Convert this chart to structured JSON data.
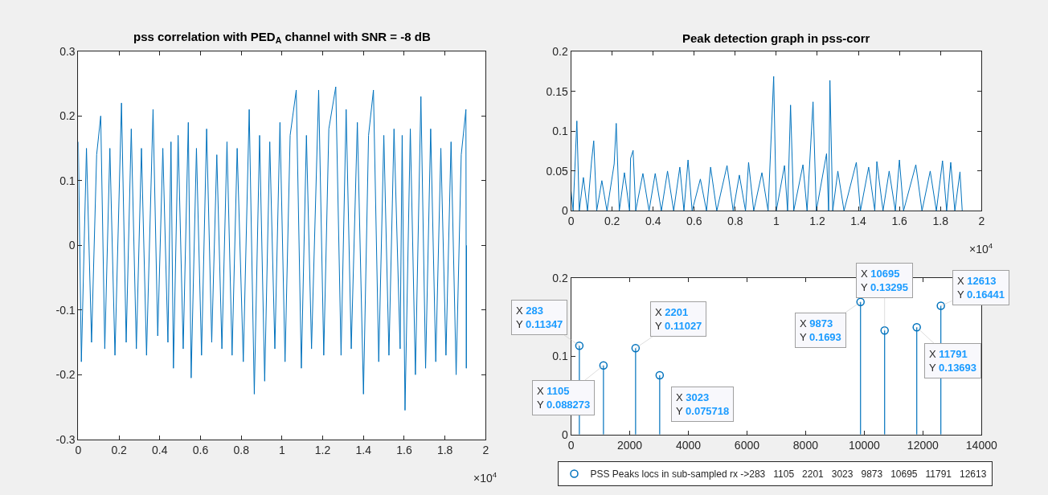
{
  "chart_data": [
    {
      "type": "line",
      "title": "pss correlation with PED$_{A}$ channel with SNR = -8 dB",
      "series": [
        {
          "color": "#0072bd",
          "x": [
            0,
            0.015,
            0.04,
            0.065,
            0.09,
            0.11,
            0.13,
            0.155,
            0.18,
            0.212,
            0.235,
            0.26,
            0.285,
            0.31,
            0.335,
            0.367,
            0.39,
            0.415,
            0.44,
            0.455,
            0.467,
            0.49,
            0.515,
            0.54,
            0.554,
            0.58,
            0.605,
            0.63,
            0.655,
            0.68,
            0.705,
            0.73,
            0.755,
            0.78,
            0.81,
            0.839,
            0.864,
            0.89,
            0.915,
            0.94,
            0.965,
            0.99,
            1.015,
            1.04,
            1.07,
            1.095,
            1.12,
            1.145,
            1.18,
            1.205,
            1.23,
            1.264,
            1.29,
            1.315,
            1.34,
            1.37,
            1.4,
            1.425,
            1.449,
            1.475,
            1.5,
            1.525,
            1.55,
            1.58,
            1.59,
            1.604,
            1.63,
            1.655,
            1.682,
            1.705,
            1.73,
            1.755,
            1.78,
            1.805,
            1.83,
            1.855,
            1.88,
            1.903,
            1.905,
            1.906
          ],
          "values": [
            0.16,
            -0.18,
            0.15,
            -0.15,
            0.14,
            0.2,
            -0.16,
            0.15,
            -0.17,
            0.22,
            -0.15,
            0.18,
            -0.16,
            0.15,
            -0.17,
            0.21,
            -0.14,
            0.15,
            -0.15,
            0.16,
            -0.19,
            0.17,
            -0.16,
            0.19,
            -0.205,
            0.15,
            -0.17,
            0.18,
            -0.15,
            0.14,
            -0.16,
            0.16,
            -0.17,
            0.15,
            -0.18,
            0.21,
            -0.23,
            0.17,
            -0.21,
            0.16,
            -0.16,
            0.19,
            -0.18,
            0.17,
            0.24,
            -0.19,
            0.17,
            -0.16,
            0.24,
            -0.17,
            0.18,
            0.245,
            -0.17,
            0.21,
            -0.16,
            0.19,
            -0.23,
            0.17,
            0.24,
            -0.18,
            0.17,
            -0.17,
            0.18,
            -0.16,
            0.17,
            -0.255,
            0.18,
            -0.2,
            0.23,
            -0.19,
            0.18,
            -0.18,
            0.15,
            -0.17,
            0.16,
            -0.2,
            0.14,
            0.21,
            -0.19,
            0
          ]
        }
      ],
      "xlim": [
        0,
        2
      ],
      "xticks": [
        0,
        0.2,
        0.4,
        0.6,
        0.8,
        1,
        1.2,
        1.4,
        1.6,
        1.8,
        2
      ],
      "ylim": [
        -0.3,
        0.3
      ],
      "yticks": [
        -0.3,
        -0.2,
        -0.1,
        0,
        0.1,
        0.2,
        0.3
      ],
      "annotations": [
        "×10$^{4}$"
      ]
    },
    {
      "type": "line",
      "title": "Peak detection graph in pss-corr",
      "series": [
        {
          "color": "#0072bd",
          "x": [
            0,
            0.01,
            0.0283,
            0.04,
            0.06,
            0.08,
            0.1,
            0.1105,
            0.125,
            0.15,
            0.175,
            0.21,
            0.2201,
            0.235,
            0.26,
            0.285,
            0.29,
            0.3023,
            0.315,
            0.35,
            0.38,
            0.41,
            0.44,
            0.47,
            0.5,
            0.53,
            0.55,
            0.57,
            0.59,
            0.63,
            0.66,
            0.68,
            0.71,
            0.76,
            0.79,
            0.82,
            0.85,
            0.865,
            0.89,
            0.93,
            0.96,
            0.9873,
            1.0,
            1.04,
            1.055,
            1.0695,
            1.085,
            1.13,
            1.15,
            1.1791,
            1.195,
            1.245,
            1.255,
            1.2613,
            1.275,
            1.3,
            1.33,
            1.39,
            1.41,
            1.45,
            1.48,
            1.49,
            1.52,
            1.55,
            1.58,
            1.6,
            1.62,
            1.68,
            1.71,
            1.75,
            1.78,
            1.81,
            1.83,
            1.85,
            1.87,
            1.895,
            1.906
          ],
          "values": [
            0.025,
            0,
            0.113,
            0,
            0.042,
            0,
            0.063,
            0.088,
            0,
            0.038,
            0,
            0.059,
            0.11,
            0,
            0.048,
            0,
            0.066,
            0.076,
            0,
            0.047,
            0,
            0.047,
            0,
            0.05,
            0,
            0.055,
            0,
            0.064,
            0,
            0.04,
            0,
            0.055,
            0,
            0.057,
            0,
            0.045,
            0,
            0.061,
            0,
            0.048,
            0,
            0.169,
            0,
            0.057,
            0,
            0.133,
            0,
            0.058,
            0,
            0.137,
            0,
            0.072,
            0,
            0.164,
            0,
            0.05,
            0,
            0.061,
            0,
            0.055,
            0,
            0.062,
            0,
            0.05,
            0,
            0.064,
            0,
            0.058,
            0,
            0.05,
            0,
            0.063,
            0,
            0.061,
            0,
            0.049,
            0
          ]
        }
      ],
      "xlim": [
        0,
        2
      ],
      "xticks": [
        0,
        0.2,
        0.4,
        0.6,
        0.8,
        1,
        1.2,
        1.4,
        1.6,
        1.8,
        2
      ],
      "ylim": [
        0,
        0.2
      ],
      "yticks": [
        0,
        0.05,
        0.1,
        0.15,
        0.2
      ],
      "annotations": [
        "×10$^{4}$"
      ]
    },
    {
      "type": "lollipop",
      "series": [
        {
          "name": "PSS Peaks locs in sub-sampled rx ->283   1105   2201   3023   9873   10695   11791   12613",
          "color": "#0072bd",
          "x": [
            283,
            1105,
            2201,
            3023,
            9873,
            10695,
            11791,
            12613
          ],
          "values": [
            0.11347,
            0.088273,
            0.11027,
            0.075718,
            0.1693,
            0.13295,
            0.13693,
            0.16441
          ]
        }
      ],
      "xlim": [
        0,
        14000
      ],
      "xticks": [
        0,
        2000,
        4000,
        6000,
        8000,
        10000,
        12000,
        14000
      ],
      "ylim": [
        0,
        0.2
      ],
      "yticks": [
        0,
        0.1,
        0.2
      ],
      "marker": "circle",
      "legend": "bottom",
      "annotations": [
        {
          "text": "X 283\nY 0.11347",
          "x": 283,
          "y": 0.11347
        },
        {
          "text": "X 1105\nY 0.088273",
          "x": 1105,
          "y": 0.088273
        },
        {
          "text": "X 2201\nY 0.11027",
          "x": 2201,
          "y": 0.11027
        },
        {
          "text": "X 3023\nY 0.075718",
          "x": 3023,
          "y": 0.075718
        },
        {
          "text": "X 9873\nY 0.1693",
          "x": 9873,
          "y": 0.1693
        },
        {
          "text": "X 10695\nY 0.13295",
          "x": 10695,
          "y": 0.13295
        },
        {
          "text": "X 11791\nY 0.13693",
          "x": 11791,
          "y": 0.13693
        },
        {
          "text": "X 12613\nY 0.16441",
          "x": 12613,
          "y": 0.16441
        }
      ]
    }
  ]
}
